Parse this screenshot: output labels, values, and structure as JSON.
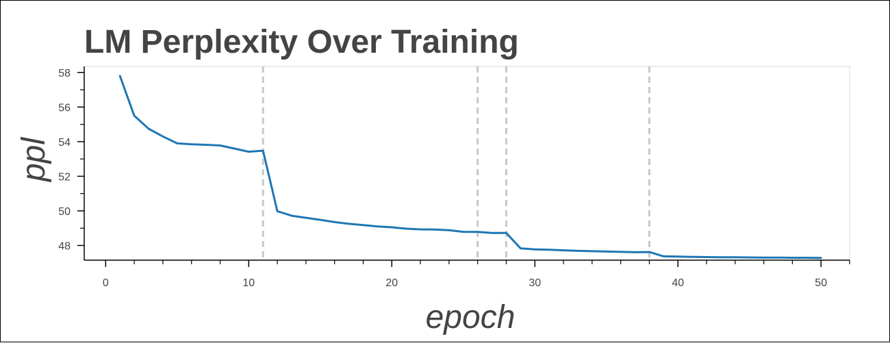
{
  "chart_data": {
    "type": "line",
    "title": "LM Perplexity Over Training",
    "xlabel": "epoch",
    "ylabel": "ppl",
    "xlim": [
      -1.5,
      52
    ],
    "ylim": [
      47.15,
      58.35
    ],
    "xticks": [
      0,
      10,
      20,
      30,
      40,
      50
    ],
    "yticks": [
      48,
      50,
      52,
      54,
      56,
      58
    ],
    "x_minor_step": 2,
    "y_minor_step": 1,
    "grid": false,
    "vlines": [
      11,
      26,
      28,
      38
    ],
    "colors": {
      "line": "#1f77b4",
      "vline": "#c8c8c8",
      "axis": "#000000",
      "plot_border": "#e5e5e5"
    },
    "series": [
      {
        "x": [
          1,
          2,
          3,
          4,
          5,
          6,
          7,
          8,
          9,
          10,
          11,
          12,
          13,
          14,
          15,
          16,
          17,
          18,
          19,
          20,
          21,
          22,
          23,
          24,
          25,
          26,
          27,
          28,
          29,
          30,
          31,
          32,
          33,
          34,
          35,
          36,
          37,
          38,
          39,
          40,
          41,
          42,
          43,
          44,
          45,
          46,
          47,
          48,
          49,
          50
        ],
        "values": [
          57.8,
          55.5,
          54.75,
          54.3,
          53.9,
          53.85,
          53.82,
          53.78,
          53.6,
          53.42,
          53.48,
          49.98,
          49.72,
          49.6,
          49.48,
          49.35,
          49.25,
          49.18,
          49.1,
          49.05,
          48.97,
          48.93,
          48.92,
          48.88,
          48.79,
          48.78,
          48.72,
          48.72,
          47.83,
          47.77,
          47.75,
          47.72,
          47.69,
          47.67,
          47.65,
          47.63,
          47.61,
          47.62,
          47.37,
          47.36,
          47.34,
          47.33,
          47.32,
          47.32,
          47.31,
          47.3,
          47.3,
          47.29,
          47.29,
          47.28
        ]
      }
    ]
  }
}
